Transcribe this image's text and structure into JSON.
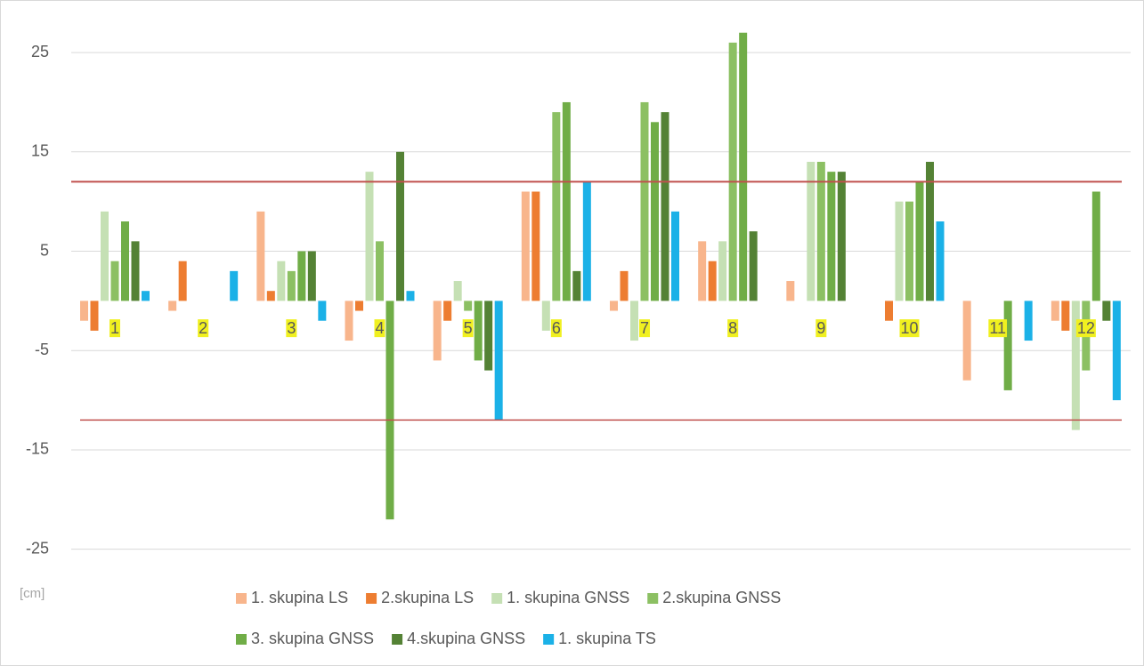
{
  "chart_data": {
    "type": "bar",
    "y_axis_label": "[cm]",
    "categories": [
      "1",
      "2",
      "3",
      "4",
      "5",
      "6",
      "7",
      "8",
      "9",
      "10",
      "11",
      "12"
    ],
    "series": [
      {
        "name": "1. skupina LS",
        "color": "#f8b58c",
        "values": [
          -2,
          -1,
          9,
          -4,
          -6,
          11,
          -1,
          6,
          2,
          0,
          -8,
          -2
        ]
      },
      {
        "name": "2.skupina LS",
        "color": "#ed7d31",
        "values": [
          -3,
          4,
          1,
          -1,
          -2,
          11,
          3,
          4,
          0,
          -2,
          0,
          -3
        ]
      },
      {
        "name": "1. skupina GNSS",
        "color": "#c5e0b4",
        "values": [
          9,
          0,
          4,
          13,
          2,
          -3,
          -4,
          6,
          14,
          10,
          0,
          -13
        ]
      },
      {
        "name": "2.skupina GNSS",
        "color": "#8cc063",
        "values": [
          4,
          0,
          3,
          6,
          -1,
          19,
          20,
          26,
          14,
          10,
          0,
          -7
        ]
      },
      {
        "name": "3. skupina GNSS",
        "color": "#70ad47",
        "values": [
          8,
          0,
          5,
          -22,
          -6,
          20,
          18,
          27,
          13,
          12,
          -9,
          11
        ]
      },
      {
        "name": "4.skupina GNSS",
        "color": "#548235",
        "values": [
          6,
          0,
          5,
          15,
          -7,
          3,
          19,
          7,
          13,
          14,
          0,
          -2
        ]
      },
      {
        "name": "1. skupina TS",
        "color": "#1bb1e7",
        "values": [
          1,
          3,
          -2,
          1,
          -12,
          12,
          9,
          0,
          0,
          8,
          -4,
          -10
        ]
      }
    ],
    "reference_lines": [
      12,
      -12
    ],
    "reference_color": "#c0504d",
    "category_label_background": "#f0f020",
    "ylim": [
      -27,
      28.5
    ],
    "yticks": [
      -25,
      -15,
      -5,
      5,
      15,
      25
    ],
    "grid": true,
    "legend": "bottom"
  }
}
